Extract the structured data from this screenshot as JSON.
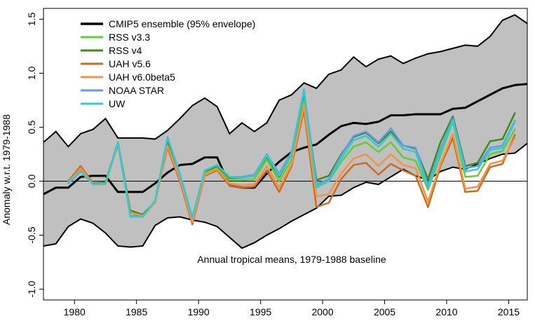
{
  "chart_data": {
    "type": "line",
    "title": "",
    "annotation": "Annual tropical means, 1979-1988 baseline",
    "xlabel": "",
    "ylabel": "Anomaly w.r.t. 1979-1988",
    "xlim": [
      1977.5,
      2016.5
    ],
    "ylim": [
      -1.1,
      1.6
    ],
    "x_ticks": [
      1980,
      1985,
      1990,
      1995,
      2000,
      2005,
      2010,
      2015
    ],
    "y_ticks": [
      -1.0,
      -0.5,
      0.0,
      0.5,
      1.0,
      1.5
    ],
    "y_tick_labels": [
      "-1.0",
      "-0.5",
      "0.0",
      "0.5",
      "1.0",
      "1.5"
    ],
    "zero_line": 0,
    "envelope": {
      "name": "CMIP5 ensemble (95% envelope)",
      "color": "#c0c0c0",
      "x": [
        1977.5,
        1978.5,
        1979.5,
        1980.5,
        1981.5,
        1982.5,
        1983.5,
        1984.5,
        1985.5,
        1986.5,
        1987.5,
        1988.5,
        1989.5,
        1990.5,
        1991.5,
        1992.5,
        1993.5,
        1994.5,
        1995.5,
        1996.5,
        1997.5,
        1998.5,
        1999.5,
        2000.5,
        2001.5,
        2002.5,
        2003.5,
        2004.5,
        2005.5,
        2006.5,
        2007.5,
        2008.5,
        2009.5,
        2010.5,
        2011.5,
        2012.5,
        2013.5,
        2014.5,
        2015.5,
        2016.5
      ],
      "upper": [
        0.36,
        0.46,
        0.32,
        0.44,
        0.48,
        0.58,
        0.4,
        0.4,
        0.4,
        0.39,
        0.47,
        0.58,
        0.7,
        0.77,
        0.69,
        0.44,
        0.54,
        0.46,
        0.54,
        0.75,
        0.8,
        0.91,
        0.86,
        0.99,
        1.03,
        1.15,
        1.06,
        1.13,
        1.16,
        1.09,
        1.14,
        1.18,
        1.2,
        1.23,
        1.26,
        1.25,
        1.34,
        1.49,
        1.54,
        1.46
      ],
      "lower": [
        -0.6,
        -0.58,
        -0.42,
        -0.35,
        -0.39,
        -0.48,
        -0.6,
        -0.61,
        -0.6,
        -0.41,
        -0.34,
        -0.33,
        -0.36,
        -0.38,
        -0.42,
        -0.52,
        -0.62,
        -0.57,
        -0.5,
        -0.44,
        -0.37,
        -0.31,
        -0.25,
        -0.14,
        -0.13,
        -0.06,
        -0.01,
        -0.03,
        0.04,
        0.11,
        0.05,
        0.01,
        0.09,
        0.13,
        0.11,
        0.16,
        0.21,
        0.25,
        0.26,
        0.35
      ]
    },
    "series": [
      {
        "name": "CMIP5 ensemble (95% envelope)",
        "color": "#000000",
        "width": 3,
        "x": [
          1977.5,
          1978.5,
          1979.5,
          1980.5,
          1981.5,
          1982.5,
          1983.5,
          1984.5,
          1985.5,
          1986.5,
          1987.5,
          1988.5,
          1989.5,
          1990.5,
          1991.5,
          1992.5,
          1993.5,
          1994.5,
          1995.5,
          1996.5,
          1997.5,
          1998.5,
          1999.5,
          2000.5,
          2001.5,
          2002.5,
          2003.5,
          2004.5,
          2005.5,
          2006.5,
          2007.5,
          2008.5,
          2009.5,
          2010.5,
          2011.5,
          2012.5,
          2013.5,
          2014.5,
          2015.5,
          2016.5
        ],
        "values": [
          -0.12,
          -0.06,
          -0.06,
          0.04,
          0.05,
          0.05,
          -0.1,
          -0.1,
          -0.1,
          -0.02,
          0.08,
          0.15,
          0.16,
          0.22,
          0.22,
          -0.04,
          -0.06,
          -0.06,
          0.07,
          0.18,
          0.27,
          0.31,
          0.34,
          0.43,
          0.51,
          0.54,
          0.53,
          0.55,
          0.61,
          0.61,
          0.62,
          0.62,
          0.62,
          0.67,
          0.68,
          0.74,
          0.8,
          0.86,
          0.89,
          0.9
        ]
      },
      {
        "name": "RSS v3.3",
        "color": "#66cc33",
        "width": 2.5,
        "x": [
          1979.5,
          1980.5,
          1981.5,
          1982.5,
          1983.5,
          1984.5,
          1985.5,
          1986.5,
          1987.5,
          1988.5,
          1989.5,
          1990.5,
          1991.5,
          1992.5,
          1993.5,
          1994.5,
          1995.5,
          1996.5,
          1997.5,
          1998.5,
          1999.5,
          2000.5,
          2001.5,
          2002.5,
          2003.5,
          2004.5,
          2005.5,
          2006.5,
          2007.5,
          2008.5,
          2009.5,
          2010.5,
          2011.5,
          2012.5,
          2013.5,
          2014.5,
          2015.5
        ],
        "values": [
          -0.01,
          0.11,
          -0.03,
          -0.02,
          0.35,
          -0.28,
          -0.32,
          -0.2,
          0.36,
          0.04,
          -0.35,
          0.07,
          0.12,
          0.01,
          0.01,
          0.02,
          0.2,
          0.0,
          0.2,
          0.78,
          -0.04,
          0.0,
          0.18,
          0.32,
          0.36,
          0.27,
          0.36,
          0.22,
          0.19,
          -0.08,
          0.24,
          0.55,
          0.04,
          0.05,
          0.25,
          0.28,
          0.48
        ]
      },
      {
        "name": "RSS v4",
        "color": "#3d8c1a",
        "width": 2.5,
        "x": [
          1979.5,
          1980.5,
          1981.5,
          1982.5,
          1983.5,
          1984.5,
          1985.5,
          1986.5,
          1987.5,
          1988.5,
          1989.5,
          1990.5,
          1991.5,
          1992.5,
          1993.5,
          1994.5,
          1995.5,
          1996.5,
          1997.5,
          1998.5,
          1999.5,
          2000.5,
          2001.5,
          2002.5,
          2003.5,
          2004.5,
          2005.5,
          2006.5,
          2007.5,
          2008.5,
          2009.5,
          2010.5,
          2011.5,
          2012.5,
          2013.5,
          2014.5,
          2015.5
        ],
        "values": [
          0.0,
          0.12,
          -0.02,
          -0.01,
          0.36,
          -0.27,
          -0.31,
          -0.19,
          0.37,
          0.05,
          -0.34,
          0.09,
          0.14,
          0.03,
          0.03,
          0.05,
          0.23,
          0.04,
          0.25,
          0.82,
          0.01,
          0.05,
          0.25,
          0.41,
          0.45,
          0.35,
          0.46,
          0.33,
          0.3,
          0.02,
          0.36,
          0.6,
          0.14,
          0.17,
          0.37,
          0.39,
          0.63
        ]
      },
      {
        "name": "UAH v5.6",
        "color": "#d2691e",
        "width": 2.5,
        "x": [
          1979.5,
          1980.5,
          1981.5,
          1982.5,
          1983.5,
          1984.5,
          1985.5,
          1986.5,
          1987.5,
          1988.5,
          1989.5,
          1990.5,
          1991.5,
          1992.5,
          1993.5,
          1994.5,
          1995.5,
          1996.5,
          1997.5,
          1998.5,
          1999.5,
          2000.5,
          2001.5,
          2002.5,
          2003.5,
          2004.5,
          2005.5,
          2006.5,
          2007.5,
          2008.5,
          2009.5,
          2010.5,
          2011.5,
          2012.5,
          2013.5,
          2014.5,
          2015.5
        ],
        "values": [
          0.0,
          0.14,
          -0.02,
          -0.02,
          0.34,
          -0.29,
          -0.33,
          -0.19,
          0.31,
          0.0,
          -0.4,
          0.05,
          0.1,
          -0.04,
          -0.06,
          -0.05,
          0.1,
          -0.1,
          0.14,
          0.66,
          -0.24,
          -0.2,
          0.02,
          0.15,
          0.17,
          0.06,
          0.16,
          0.1,
          0.05,
          -0.24,
          0.14,
          0.4,
          -0.1,
          -0.09,
          0.13,
          0.16,
          0.43
        ]
      },
      {
        "name": "UAH v6.0beta5",
        "color": "#f0944a",
        "width": 2.5,
        "x": [
          1979.5,
          1980.5,
          1981.5,
          1982.5,
          1983.5,
          1984.5,
          1985.5,
          1986.5,
          1987.5,
          1988.5,
          1989.5,
          1990.5,
          1991.5,
          1992.5,
          1993.5,
          1994.5,
          1995.5,
          1996.5,
          1997.5,
          1998.5,
          1999.5,
          2000.5,
          2001.5,
          2002.5,
          2003.5,
          2004.5,
          2005.5,
          2006.5,
          2007.5,
          2008.5,
          2009.5,
          2010.5,
          2011.5,
          2012.5,
          2013.5,
          2014.5,
          2015.5
        ],
        "values": [
          -0.01,
          0.12,
          -0.03,
          -0.03,
          0.35,
          -0.29,
          -0.32,
          -0.2,
          0.33,
          0.02,
          -0.38,
          0.06,
          0.11,
          -0.02,
          -0.04,
          -0.03,
          0.14,
          -0.06,
          0.16,
          0.7,
          -0.14,
          -0.12,
          0.07,
          0.21,
          0.25,
          0.14,
          0.25,
          0.15,
          0.12,
          -0.19,
          0.16,
          0.44,
          -0.07,
          -0.05,
          0.16,
          0.19,
          0.4
        ]
      },
      {
        "name": "NOAA STAR",
        "color": "#6699ee",
        "width": 2.5,
        "x": [
          1979.5,
          1980.5,
          1981.5,
          1982.5,
          1983.5,
          1984.5,
          1985.5,
          1986.5,
          1987.5,
          1988.5,
          1989.5,
          1990.5,
          1991.5,
          1992.5,
          1993.5,
          1994.5,
          1995.5,
          1996.5,
          1997.5,
          1998.5,
          1999.5,
          2000.5,
          2001.5,
          2002.5,
          2003.5,
          2004.5,
          2005.5,
          2006.5,
          2007.5,
          2008.5,
          2009.5,
          2010.5,
          2011.5,
          2012.5,
          2013.5,
          2014.5,
          2015.5
        ],
        "values": [
          -0.02,
          0.09,
          -0.03,
          -0.02,
          0.36,
          -0.32,
          -0.33,
          -0.18,
          0.4,
          0.06,
          -0.34,
          0.1,
          0.15,
          0.04,
          0.04,
          0.06,
          0.25,
          0.07,
          0.27,
          0.85,
          -0.03,
          0.02,
          0.24,
          0.42,
          0.46,
          0.36,
          0.49,
          0.33,
          0.31,
          -0.03,
          0.3,
          0.58,
          0.12,
          0.14,
          0.31,
          0.33,
          0.56
        ]
      },
      {
        "name": "UW",
        "color": "#33cccc",
        "width": 2.5,
        "x": [
          1979.5,
          1980.5,
          1981.5,
          1982.5,
          1983.5,
          1984.5,
          1985.5,
          1986.5,
          1987.5,
          1988.5,
          1989.5,
          1990.5,
          1991.5,
          1992.5,
          1993.5,
          1994.5,
          1995.5,
          1996.5,
          1997.5,
          1998.5,
          1999.5,
          2000.5,
          2001.5,
          2002.5,
          2003.5,
          2004.5,
          2005.5,
          2006.5,
          2007.5,
          2008.5,
          2009.5,
          2010.5,
          2011.5,
          2012.5,
          2013.5,
          2014.5,
          2015.5
        ],
        "values": [
          -0.01,
          0.09,
          -0.03,
          -0.02,
          0.36,
          -0.33,
          -0.33,
          -0.18,
          0.41,
          0.07,
          -0.33,
          0.1,
          0.15,
          0.04,
          0.03,
          0.05,
          0.24,
          0.05,
          0.25,
          0.84,
          -0.06,
          0.0,
          0.21,
          0.38,
          0.42,
          0.32,
          0.44,
          0.3,
          0.27,
          -0.06,
          0.27,
          0.56,
          0.09,
          0.11,
          0.29,
          0.31,
          0.55
        ]
      }
    ],
    "legend": {
      "position": "top-left",
      "entries": [
        {
          "label": "CMIP5 ensemble (95% envelope)",
          "color": "#000000"
        },
        {
          "label": "RSS v3.3",
          "color": "#66cc33"
        },
        {
          "label": "RSS v4",
          "color": "#3d8c1a"
        },
        {
          "label": "UAH v5.6",
          "color": "#d2691e"
        },
        {
          "label": "UAH v6.0beta5",
          "color": "#f0944a"
        },
        {
          "label": "NOAA STAR",
          "color": "#6699ee"
        },
        {
          "label": "UW",
          "color": "#33cccc"
        }
      ]
    }
  }
}
